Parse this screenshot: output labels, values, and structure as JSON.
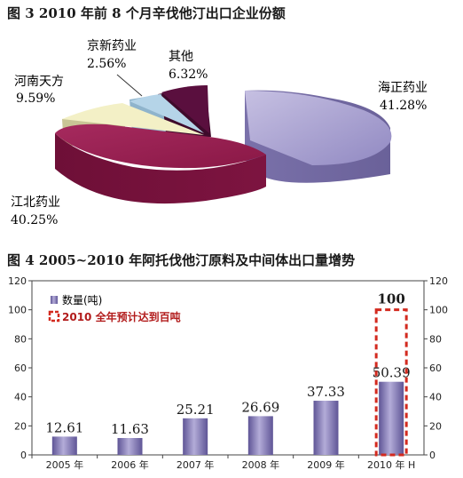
{
  "chart_data": [
    {
      "type": "pie",
      "title": "图 3  2010 年前 8 个月辛伐他汀出口企业份额",
      "slices": [
        {
          "name": "海正药业",
          "pct_label": "41.28%",
          "value": 41.28,
          "color": "#9d94c8"
        },
        {
          "name": "江北药业",
          "pct_label": "40.25%",
          "value": 40.25,
          "color": "#8e1a4a"
        },
        {
          "name": "河南天方",
          "pct_label": "9.59%",
          "value": 9.59,
          "color": "#f3f0c6"
        },
        {
          "name": "京新药业",
          "pct_label": "2.56%",
          "value": 2.56,
          "color": "#b5d4e8"
        },
        {
          "name": "其他",
          "pct_label": "6.32%",
          "value": 6.32,
          "color": "#5a0f3e"
        }
      ]
    },
    {
      "type": "bar",
      "title": "图 4  2005~2010 年阿托伐他汀原料及中间体出口量增势",
      "categories": [
        "2005 年",
        "2006 年",
        "2007 年",
        "2008 年",
        "2009 年",
        "2010 年 H"
      ],
      "series": [
        {
          "name": "数量(吨)",
          "values": [
            12.61,
            11.63,
            25.21,
            26.69,
            37.33,
            50.39
          ],
          "color": "#7e74b2"
        },
        {
          "name": "2010 全年预计达到百吨",
          "values": [
            null,
            null,
            null,
            null,
            null,
            100
          ],
          "color": "#d32a1f"
        }
      ],
      "value_labels": [
        "12.61",
        "11.63",
        "25.21",
        "26.69",
        "37.33",
        "50.39"
      ],
      "forecast_label": "100",
      "ylim": [
        0,
        120
      ],
      "yticks": [
        0,
        20,
        40,
        60,
        80,
        100,
        120
      ],
      "grid": false,
      "legend_position": "top-left"
    }
  ]
}
